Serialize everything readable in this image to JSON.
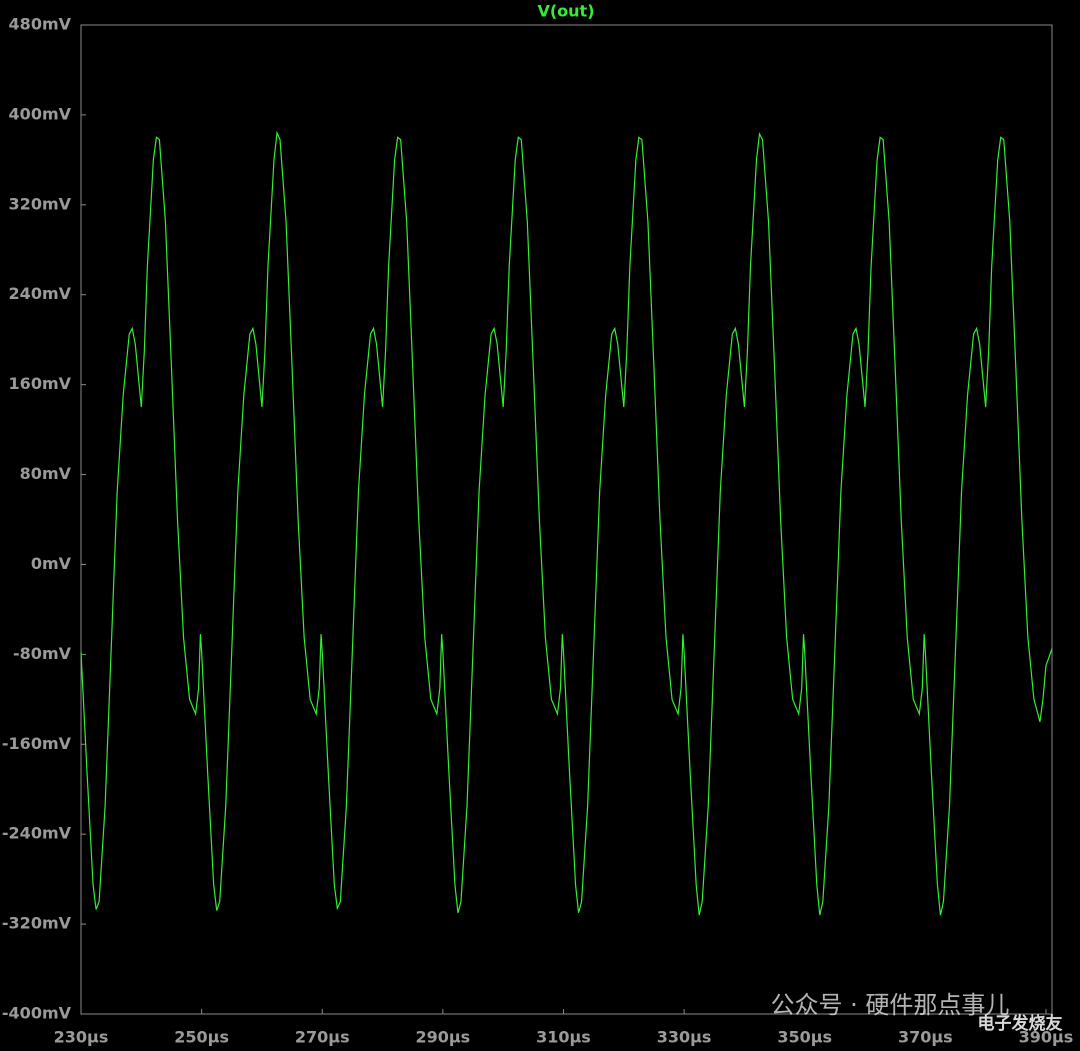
{
  "chart_data": {
    "type": "line",
    "x": [
      230,
      231,
      232,
      232.5,
      233,
      234,
      235,
      236,
      237,
      238,
      238.5,
      239,
      240,
      240.5,
      241,
      242,
      242.5,
      243,
      244,
      245,
      246,
      247,
      248,
      249,
      249.5,
      249.8,
      250,
      251,
      252,
      252.5,
      253,
      254,
      255,
      256,
      257,
      258,
      258.5,
      259,
      260,
      260.5,
      261,
      262,
      262.5,
      263,
      264,
      265,
      266,
      267,
      268,
      269,
      269.5,
      269.8,
      270,
      271,
      272,
      272.5,
      273,
      274,
      275,
      276,
      277,
      278,
      278.5,
      279,
      280,
      280.5,
      281,
      282,
      282.5,
      283,
      284,
      285,
      286,
      287,
      288,
      289,
      289.5,
      289.8,
      290,
      291,
      292,
      292.5,
      293,
      294,
      295,
      296,
      297,
      298,
      298.5,
      299,
      300,
      300.5,
      301,
      302,
      302.5,
      303,
      304,
      305,
      306,
      307,
      308,
      309,
      309.5,
      309.8,
      310,
      311,
      312,
      312.5,
      313,
      314,
      315,
      316,
      317,
      318,
      318.5,
      319,
      320,
      320.5,
      321,
      322,
      322.5,
      323,
      324,
      325,
      326,
      327,
      328,
      329,
      329.5,
      329.8,
      330,
      331,
      332,
      332.5,
      333,
      334,
      335,
      336,
      337,
      338,
      338.5,
      339,
      340,
      340.5,
      341,
      342,
      342.5,
      343,
      344,
      345,
      346,
      347,
      348,
      349,
      349.5,
      349.8,
      350,
      351,
      352,
      352.5,
      353,
      354,
      355,
      356,
      357,
      358,
      358.5,
      359,
      360,
      360.5,
      361,
      362,
      362.5,
      363,
      364,
      365,
      366,
      367,
      368,
      369,
      369.5,
      369.8,
      370,
      371,
      372,
      372.5,
      373,
      374,
      375,
      376,
      377,
      378,
      378.5,
      379,
      380,
      380.5,
      381,
      382,
      382.5,
      383,
      384,
      385,
      386,
      387,
      388,
      389,
      389.5,
      390,
      391
    ],
    "series": [
      {
        "name": "V(out)",
        "color": "#33ee33",
        "values": [
          -78,
          -185,
          -285,
          -307,
          -300,
          -215,
          -76,
          65,
          151,
          205,
          210,
          196,
          140,
          190,
          265,
          360,
          380,
          378,
          305,
          175,
          40,
          -65,
          -120,
          -133,
          -110,
          -62,
          -78,
          -185,
          -285,
          -308,
          -300,
          -215,
          -76,
          65,
          151,
          205,
          210,
          196,
          140,
          190,
          265,
          360,
          384,
          378,
          305,
          175,
          40,
          -65,
          -120,
          -133,
          -110,
          -62,
          -78,
          -185,
          -285,
          -306,
          -300,
          -215,
          -76,
          65,
          151,
          205,
          210,
          196,
          140,
          190,
          265,
          360,
          380,
          378,
          305,
          175,
          40,
          -65,
          -120,
          -133,
          -110,
          -62,
          -78,
          -185,
          -285,
          -310,
          -300,
          -215,
          -76,
          65,
          151,
          205,
          210,
          196,
          140,
          190,
          265,
          360,
          380,
          378,
          305,
          175,
          40,
          -65,
          -120,
          -133,
          -110,
          -62,
          -78,
          -185,
          -285,
          -310,
          -300,
          -215,
          -76,
          65,
          151,
          205,
          210,
          196,
          140,
          190,
          265,
          360,
          380,
          378,
          305,
          175,
          40,
          -65,
          -120,
          -133,
          -110,
          -62,
          -78,
          -185,
          -285,
          -312,
          -300,
          -215,
          -76,
          65,
          151,
          205,
          210,
          196,
          140,
          190,
          265,
          360,
          383,
          378,
          305,
          175,
          40,
          -65,
          -120,
          -133,
          -110,
          -62,
          -78,
          -185,
          -285,
          -312,
          -300,
          -215,
          -76,
          65,
          151,
          205,
          210,
          196,
          140,
          190,
          265,
          360,
          380,
          378,
          305,
          175,
          40,
          -65,
          -120,
          -133,
          -110,
          -62,
          -78,
          -185,
          -285,
          -312,
          -300,
          -215,
          -76,
          65,
          151,
          205,
          210,
          196,
          140,
          190,
          265,
          360,
          380,
          378,
          305,
          175,
          40,
          -65,
          -120,
          -140,
          -120,
          -90,
          -75
        ]
      }
    ],
    "xlim": [
      230,
      391
    ],
    "ylim": [
      -400,
      480
    ],
    "xticks": [
      {
        "value": 230,
        "label": "230µs"
      },
      {
        "value": 250,
        "label": "250µs"
      },
      {
        "value": 270,
        "label": "270µs"
      },
      {
        "value": 290,
        "label": "290µs"
      },
      {
        "value": 310,
        "label": "310µs"
      },
      {
        "value": 330,
        "label": "330µs"
      },
      {
        "value": 350,
        "label": "350µs"
      },
      {
        "value": 370,
        "label": "370µs"
      },
      {
        "value": 390,
        "label": "390µs"
      }
    ],
    "yticks": [
      {
        "value": -400,
        "label": "-400mV"
      },
      {
        "value": -320,
        "label": "-320mV"
      },
      {
        "value": -240,
        "label": "-240mV"
      },
      {
        "value": -160,
        "label": "-160mV"
      },
      {
        "value": -80,
        "label": "-80mV"
      },
      {
        "value": 0,
        "label": "0mV"
      },
      {
        "value": 80,
        "label": "80mV"
      },
      {
        "value": 160,
        "label": "160mV"
      },
      {
        "value": 240,
        "label": "240mV"
      },
      {
        "value": 320,
        "label": "320mV"
      },
      {
        "value": 400,
        "label": "400mV"
      },
      {
        "value": 480,
        "label": "480mV"
      }
    ],
    "grid": false,
    "watermark": [
      "公众号 · 硬件那点事儿",
      "电子发烧友"
    ]
  }
}
